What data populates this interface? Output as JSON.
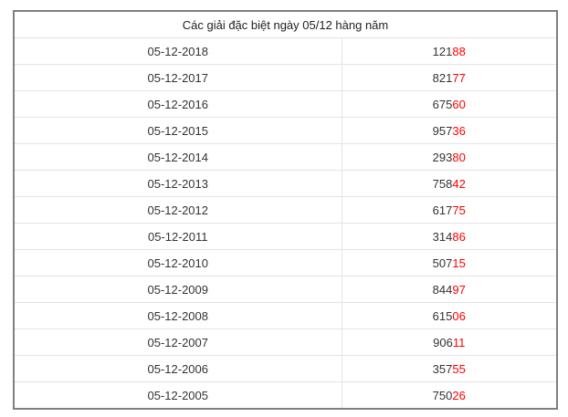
{
  "table": {
    "title": "Các giải đặc biệt ngày 05/12 hàng năm",
    "colors": {
      "highlight": "#ff0000",
      "text": "#333333",
      "outer_border": "#7f7f7f",
      "inner_border": "#e4e4e4"
    },
    "rows": [
      {
        "date": "05-12-2018",
        "prize_prefix": "121",
        "prize_suffix": "88"
      },
      {
        "date": "05-12-2017",
        "prize_prefix": "821",
        "prize_suffix": "77"
      },
      {
        "date": "05-12-2016",
        "prize_prefix": "675",
        "prize_suffix": "60"
      },
      {
        "date": "05-12-2015",
        "prize_prefix": "957",
        "prize_suffix": "36"
      },
      {
        "date": "05-12-2014",
        "prize_prefix": "293",
        "prize_suffix": "80"
      },
      {
        "date": "05-12-2013",
        "prize_prefix": "758",
        "prize_suffix": "42"
      },
      {
        "date": "05-12-2012",
        "prize_prefix": "617",
        "prize_suffix": "75"
      },
      {
        "date": "05-12-2011",
        "prize_prefix": "314",
        "prize_suffix": "86"
      },
      {
        "date": "05-12-2010",
        "prize_prefix": "507",
        "prize_suffix": "15"
      },
      {
        "date": "05-12-2009",
        "prize_prefix": "844",
        "prize_suffix": "97"
      },
      {
        "date": "05-12-2008",
        "prize_prefix": "615",
        "prize_suffix": "06"
      },
      {
        "date": "05-12-2007",
        "prize_prefix": "906",
        "prize_suffix": "11"
      },
      {
        "date": "05-12-2006",
        "prize_prefix": "357",
        "prize_suffix": "55"
      },
      {
        "date": "05-12-2005",
        "prize_prefix": "750",
        "prize_suffix": "26"
      }
    ]
  }
}
